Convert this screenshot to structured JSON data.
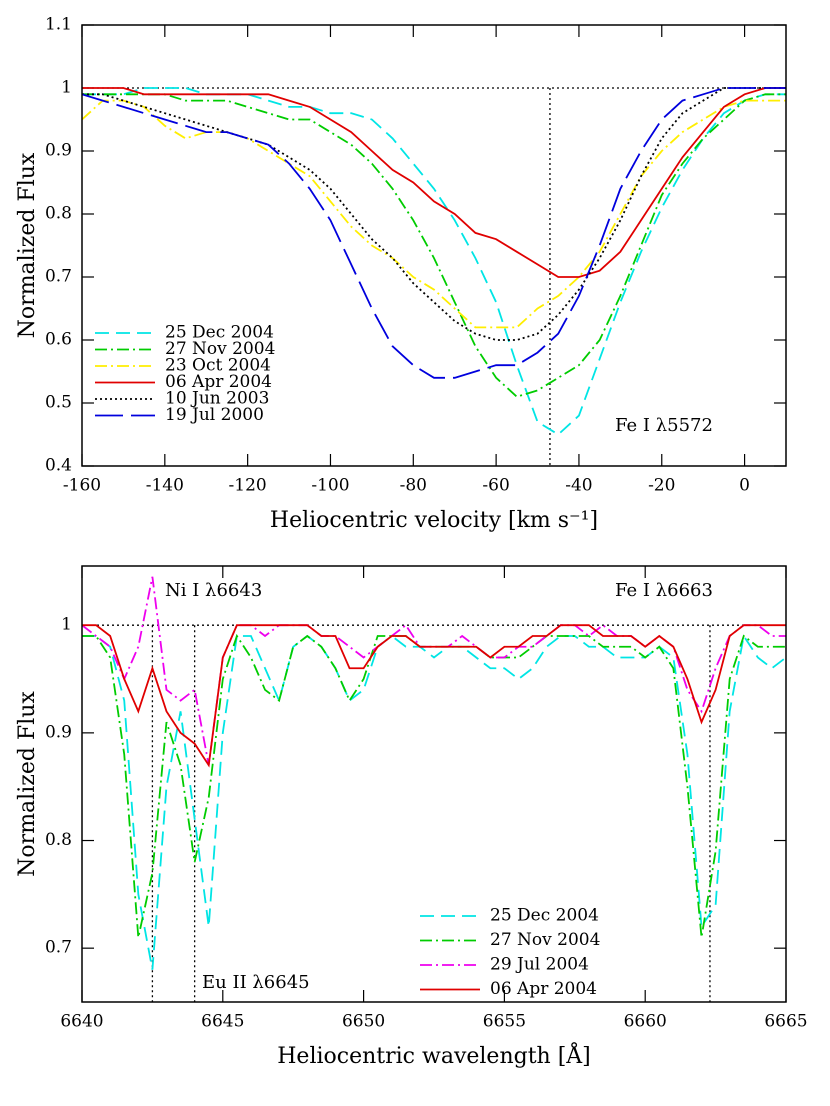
{
  "chart_data": [
    {
      "type": "line",
      "xlabel": "Heliocentric velocity [km s⁻¹]",
      "ylabel": "Normalized Flux",
      "annotations": [
        "Fe I  λ5572"
      ],
      "xlim": [
        -160,
        10
      ],
      "xticks": [
        -160,
        -140,
        -120,
        -100,
        -80,
        -60,
        -40,
        -20,
        0
      ],
      "ylim": [
        0.4,
        1.1
      ],
      "yticks": [
        0.4,
        0.5,
        0.6,
        0.7,
        0.8,
        0.9,
        1,
        1.1
      ],
      "hlines": [
        1
      ],
      "vlines": [
        -47
      ],
      "legend": "lower left",
      "x": [
        -160,
        -155,
        -150,
        -145,
        -140,
        -135,
        -130,
        -125,
        -120,
        -115,
        -110,
        -105,
        -100,
        -95,
        -90,
        -85,
        -80,
        -75,
        -70,
        -65,
        -60,
        -55,
        -50,
        -45,
        -40,
        -35,
        -30,
        -25,
        -20,
        -15,
        -10,
        -5,
        0,
        5,
        10
      ],
      "series": [
        {
          "name": "25 Dec 2004",
          "color": "#00e5e5",
          "dash": "dashed",
          "values": [
            0.99,
            0.99,
            0.99,
            1.0,
            1.0,
            1.0,
            0.99,
            0.99,
            0.99,
            0.98,
            0.97,
            0.97,
            0.96,
            0.96,
            0.95,
            0.92,
            0.88,
            0.84,
            0.79,
            0.73,
            0.66,
            0.56,
            0.47,
            0.45,
            0.48,
            0.57,
            0.66,
            0.74,
            0.81,
            0.87,
            0.92,
            0.96,
            0.98,
            0.99,
            0.99
          ]
        },
        {
          "name": "27 Nov 2004",
          "color": "#00cc00",
          "dash": "dashdot",
          "values": [
            0.99,
            0.99,
            0.99,
            0.99,
            0.99,
            0.98,
            0.98,
            0.98,
            0.97,
            0.96,
            0.95,
            0.95,
            0.93,
            0.91,
            0.88,
            0.84,
            0.79,
            0.73,
            0.66,
            0.59,
            0.54,
            0.51,
            0.52,
            0.54,
            0.56,
            0.6,
            0.67,
            0.75,
            0.83,
            0.88,
            0.92,
            0.95,
            0.98,
            0.99,
            0.99
          ]
        },
        {
          "name": "23 Oct 2004",
          "color": "#ffee00",
          "dash": "dashdot",
          "values": [
            0.95,
            0.98,
            0.98,
            0.97,
            0.94,
            0.92,
            0.93,
            0.93,
            0.92,
            0.9,
            0.88,
            0.86,
            0.82,
            0.78,
            0.75,
            0.73,
            0.7,
            0.68,
            0.65,
            0.62,
            0.62,
            0.62,
            0.65,
            0.67,
            0.7,
            0.74,
            0.8,
            0.86,
            0.9,
            0.93,
            0.95,
            0.97,
            0.98,
            0.98,
            0.98
          ]
        },
        {
          "name": "06 Apr 2004",
          "color": "#e00000",
          "dash": "solid",
          "values": [
            1.0,
            1.0,
            1.0,
            0.99,
            0.99,
            0.99,
            0.99,
            0.99,
            0.99,
            0.99,
            0.98,
            0.97,
            0.95,
            0.93,
            0.9,
            0.87,
            0.85,
            0.82,
            0.8,
            0.77,
            0.76,
            0.74,
            0.72,
            0.7,
            0.7,
            0.71,
            0.74,
            0.79,
            0.84,
            0.89,
            0.93,
            0.97,
            0.99,
            1.0,
            1.0
          ]
        },
        {
          "name": "10 Jun 2003",
          "color": "#000000",
          "dash": "dotted",
          "values": [
            0.99,
            0.99,
            0.98,
            0.97,
            0.96,
            0.95,
            0.94,
            0.93,
            0.92,
            0.91,
            0.89,
            0.87,
            0.84,
            0.8,
            0.76,
            0.73,
            0.69,
            0.66,
            0.63,
            0.61,
            0.6,
            0.6,
            0.61,
            0.64,
            0.68,
            0.73,
            0.79,
            0.86,
            0.92,
            0.96,
            0.98,
            1.0,
            1.0,
            1.0,
            1.0
          ]
        },
        {
          "name": "19 Jul 2000",
          "color": "#0000dd",
          "dash": "longdash",
          "values": [
            0.99,
            0.98,
            0.97,
            0.96,
            0.95,
            0.94,
            0.93,
            0.93,
            0.92,
            0.91,
            0.88,
            0.84,
            0.79,
            0.72,
            0.65,
            0.59,
            0.56,
            0.54,
            0.54,
            0.55,
            0.56,
            0.56,
            0.58,
            0.61,
            0.67,
            0.75,
            0.84,
            0.9,
            0.95,
            0.98,
            0.99,
            1.0,
            1.0,
            1.0,
            1.0
          ]
        }
      ]
    },
    {
      "type": "line",
      "xlabel": "Heliocentric wavelength [Å]",
      "ylabel": "Normalized Flux",
      "annotations": [
        "Ni I λ6643",
        "Fe I λ6663",
        "Eu II λ6645"
      ],
      "xlim": [
        6640,
        6665
      ],
      "xticks": [
        6640,
        6645,
        6650,
        6655,
        6660,
        6665
      ],
      "ylim": [
        0.65,
        1.055
      ],
      "yticks": [
        0.7,
        0.8,
        0.9,
        1
      ],
      "hlines": [
        1
      ],
      "vlines": [
        6642.5,
        6644.0,
        6662.3
      ],
      "legend": "lower right",
      "x": [
        6640,
        6640.5,
        6641,
        6641.5,
        6642,
        6642.5,
        6643,
        6643.5,
        6644,
        6644.5,
        6645,
        6645.5,
        6646,
        6646.5,
        6647,
        6647.5,
        6648,
        6648.5,
        6649,
        6649.5,
        6650,
        6650.5,
        6651,
        6651.5,
        6652,
        6652.5,
        6653,
        6653.5,
        6654,
        6654.5,
        6655,
        6655.5,
        6656,
        6656.5,
        6657,
        6657.5,
        6658,
        6658.5,
        6659,
        6659.5,
        6660,
        6660.5,
        6661,
        6661.5,
        6662,
        6662.5,
        6663,
        6663.5,
        6664,
        6664.5,
        6665
      ],
      "series": [
        {
          "name": "25 Dec 2004",
          "color": "#00e5e5",
          "dash": "dashed",
          "values": [
            0.99,
            0.99,
            0.98,
            0.93,
            0.75,
            0.68,
            0.85,
            0.92,
            0.82,
            0.72,
            0.9,
            0.99,
            0.99,
            0.96,
            0.93,
            0.98,
            0.99,
            0.98,
            0.96,
            0.93,
            0.94,
            0.98,
            0.99,
            0.98,
            0.98,
            0.97,
            0.98,
            0.98,
            0.97,
            0.96,
            0.96,
            0.95,
            0.96,
            0.98,
            0.99,
            0.99,
            0.98,
            0.98,
            0.97,
            0.97,
            0.97,
            0.98,
            0.97,
            0.88,
            0.72,
            0.74,
            0.92,
            0.99,
            0.97,
            0.96,
            0.97
          ]
        },
        {
          "name": "27 Nov 2004",
          "color": "#00cc00",
          "dash": "dashdot",
          "values": [
            0.99,
            0.99,
            0.97,
            0.88,
            0.71,
            0.77,
            0.91,
            0.87,
            0.78,
            0.84,
            0.95,
            0.99,
            0.97,
            0.94,
            0.93,
            0.98,
            0.99,
            0.98,
            0.96,
            0.93,
            0.95,
            0.99,
            0.99,
            0.99,
            0.98,
            0.98,
            0.98,
            0.98,
            0.98,
            0.97,
            0.97,
            0.97,
            0.98,
            0.99,
            0.99,
            0.99,
            0.99,
            0.98,
            0.98,
            0.98,
            0.97,
            0.98,
            0.96,
            0.85,
            0.71,
            0.79,
            0.95,
            0.99,
            0.98,
            0.98,
            0.98
          ]
        },
        {
          "name": "29 Jul 2004",
          "color": "#ee00ee",
          "dash": "dashdot",
          "values": [
            1.0,
            0.99,
            0.98,
            0.95,
            0.98,
            1.045,
            0.94,
            0.93,
            0.94,
            0.87,
            0.97,
            1.0,
            1.0,
            0.99,
            1.0,
            1.0,
            1.0,
            0.99,
            0.99,
            0.98,
            0.97,
            0.98,
            0.99,
            1.0,
            0.98,
            0.98,
            0.98,
            0.99,
            0.98,
            0.97,
            0.97,
            0.98,
            0.98,
            0.99,
            1.0,
            1.0,
            0.99,
            1.0,
            0.99,
            0.99,
            0.98,
            0.99,
            0.98,
            0.94,
            0.92,
            0.96,
            0.99,
            1.0,
            1.0,
            0.99,
            0.99
          ]
        },
        {
          "name": "06 Apr 2004",
          "color": "#e00000",
          "dash": "solid",
          "values": [
            1.0,
            1.0,
            0.99,
            0.95,
            0.92,
            0.96,
            0.92,
            0.9,
            0.89,
            0.87,
            0.97,
            1.0,
            1.0,
            1.0,
            1.0,
            1.0,
            1.0,
            0.99,
            0.99,
            0.96,
            0.96,
            0.98,
            0.99,
            0.99,
            0.98,
            0.98,
            0.98,
            0.98,
            0.98,
            0.97,
            0.98,
            0.98,
            0.99,
            0.99,
            1.0,
            1.0,
            1.0,
            0.99,
            0.99,
            0.99,
            0.98,
            0.99,
            0.98,
            0.95,
            0.91,
            0.94,
            0.99,
            1.0,
            1.0,
            1.0,
            1.0
          ]
        }
      ]
    }
  ]
}
